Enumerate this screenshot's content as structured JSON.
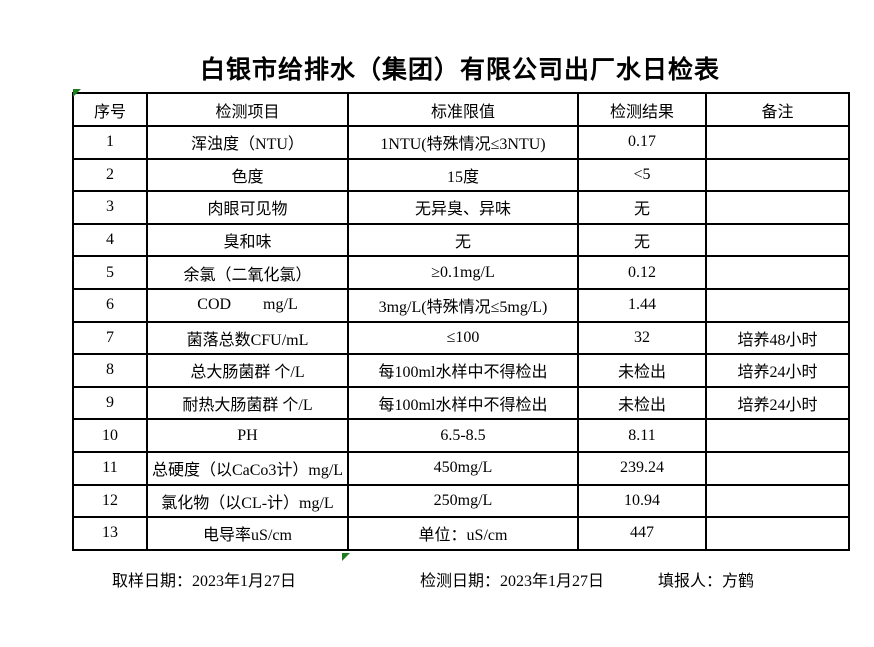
{
  "title": "白银市给排水（集团）有限公司出厂水日检表",
  "table": {
    "headers": [
      "序号",
      "检测项目",
      "标准限值",
      "检测结果",
      "备注"
    ],
    "rows": [
      {
        "no": "1",
        "item": "浑浊度（NTU）",
        "limit": "1NTU(特殊情况≤3NTU)",
        "result": "0.17",
        "note": ""
      },
      {
        "no": "2",
        "item": "色度",
        "limit": "15度",
        "result": "<5",
        "note": ""
      },
      {
        "no": "3",
        "item": "肉眼可见物",
        "limit": "无异臭、异味",
        "result": "无",
        "note": ""
      },
      {
        "no": "4",
        "item": "臭和味",
        "limit": "无",
        "result": "无",
        "note": ""
      },
      {
        "no": "5",
        "item": "余氯（二氧化氯）",
        "limit": "≥0.1mg/L",
        "result": "0.12",
        "note": ""
      },
      {
        "no": "6",
        "item": "COD        mg/L",
        "limit": "3mg/L(特殊情况≤5mg/L)",
        "result": "1.44",
        "note": ""
      },
      {
        "no": "7",
        "item": "菌落总数CFU/mL",
        "limit": "≤100",
        "result": "32",
        "note": "培养48小时"
      },
      {
        "no": "8",
        "item": "总大肠菌群 个/L",
        "limit": "每100ml水样中不得检出",
        "result": "未检出",
        "note": "培养24小时"
      },
      {
        "no": "9",
        "item": "耐热大肠菌群 个/L",
        "limit": "每100ml水样中不得检出",
        "result": "未检出",
        "note": "培养24小时"
      },
      {
        "no": "10",
        "item": "PH",
        "limit": "6.5-8.5",
        "result": "8.11",
        "note": ""
      },
      {
        "no": "11",
        "item": "总硬度（以CaCo3计）mg/L",
        "limit": "450mg/L",
        "result": "239.24",
        "note": ""
      },
      {
        "no": "12",
        "item": "氯化物（以CL-计）mg/L",
        "limit": "250mg/L",
        "result": "10.94",
        "note": ""
      },
      {
        "no": "13",
        "item": "电导率uS/cm",
        "limit": "单位：uS/cm",
        "result": "447",
        "note": ""
      }
    ]
  },
  "footer": {
    "sample_date": "取样日期：2023年1月27日",
    "test_date": "检测日期：2023年1月27日",
    "reporter": "填报人：方鹤"
  },
  "colors": {
    "marker_green": "#1e7e1e",
    "border": "#000000",
    "background": "#ffffff"
  }
}
